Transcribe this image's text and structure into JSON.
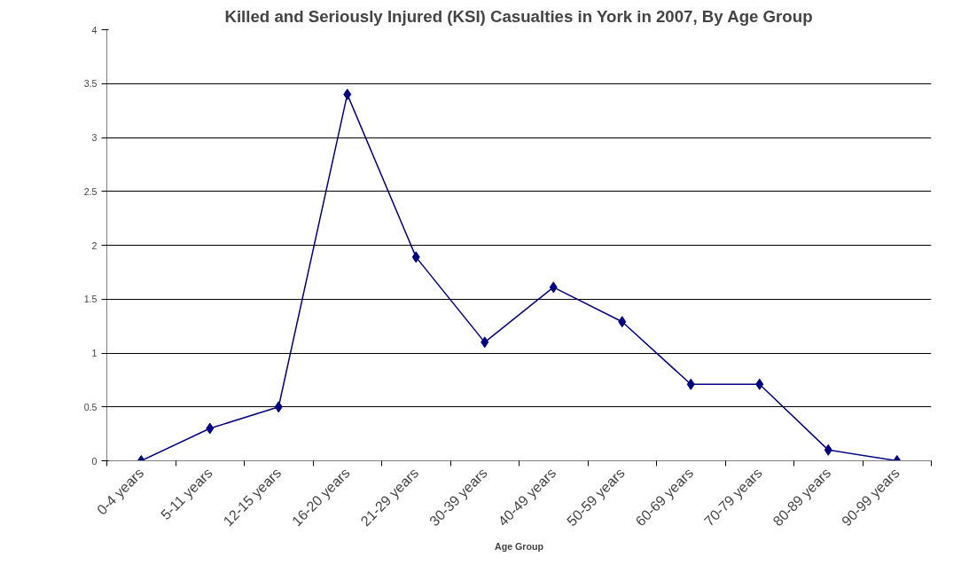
{
  "chart_data": {
    "type": "line",
    "title": "Killed and Seriously Injured (KSI) Casualties in York in 2007, By Age Group",
    "xlabel": "Age Group",
    "categories": [
      "0-4 years",
      "5-11 years",
      "12-15 years",
      "16-20 years",
      "21-29 years",
      "30-39 years",
      "40-49 years",
      "50-59 years",
      "60-69 years",
      "70-79 years",
      "80-89 years",
      "90-99 years"
    ],
    "series": [
      {
        "color": "#000080",
        "values": [
          0,
          0.3,
          0.5,
          3.4,
          1.89,
          1.1,
          1.61,
          1.29,
          0.71,
          0.71,
          0.1,
          0
        ]
      }
    ],
    "ylim": [
      0,
      4
    ],
    "yticks": [
      0,
      0.5,
      1,
      1.5,
      2,
      2.5,
      3,
      3.5,
      4
    ],
    "grid": "y",
    "marker": "diamond",
    "line_style": "solid"
  }
}
